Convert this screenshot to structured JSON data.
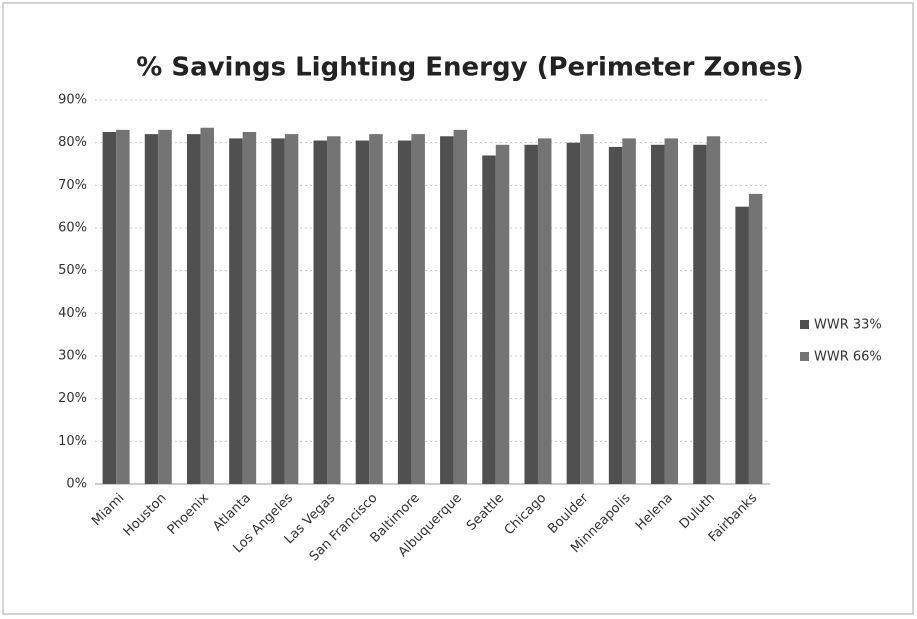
{
  "chart_data": {
    "type": "bar",
    "title": "% Savings Lighting Energy (Perimeter Zones)",
    "categories": [
      "Miami",
      "Houston",
      "Phoenix",
      "Atlanta",
      "Los Angeles",
      "Las Vegas",
      "San Francisco",
      "Baltimore",
      "Albuquerque",
      "Seattle",
      "Chicago",
      "Boulder",
      "Minneapolis",
      "Helena",
      "Duluth",
      "Fairbanks"
    ],
    "series": [
      {
        "name": "WWR 33%",
        "color": "#505050",
        "values": [
          82.5,
          82,
          82,
          81,
          81,
          80.5,
          80.5,
          80.5,
          81.5,
          77,
          79.5,
          80,
          79,
          79.5,
          79.5,
          65
        ]
      },
      {
        "name": "WWR 66%",
        "color": "#747474",
        "values": [
          83,
          83,
          83.5,
          82.5,
          82,
          81.5,
          82,
          82,
          83,
          79.5,
          81,
          82,
          81,
          81,
          81.5,
          68
        ]
      }
    ],
    "ylim": [
      0,
      90
    ],
    "yticks": [
      {
        "value": 0,
        "label": "0%"
      },
      {
        "value": 10,
        "label": "10%"
      },
      {
        "value": 20,
        "label": "20%"
      },
      {
        "value": 30,
        "label": "30%"
      },
      {
        "value": 40,
        "label": "40%"
      },
      {
        "value": 50,
        "label": "50%"
      },
      {
        "value": 60,
        "label": "60%"
      },
      {
        "value": 70,
        "label": "70%"
      },
      {
        "value": 80,
        "label": "80%"
      },
      {
        "value": 90,
        "label": "90%"
      }
    ],
    "grid": true,
    "legend": "right"
  }
}
